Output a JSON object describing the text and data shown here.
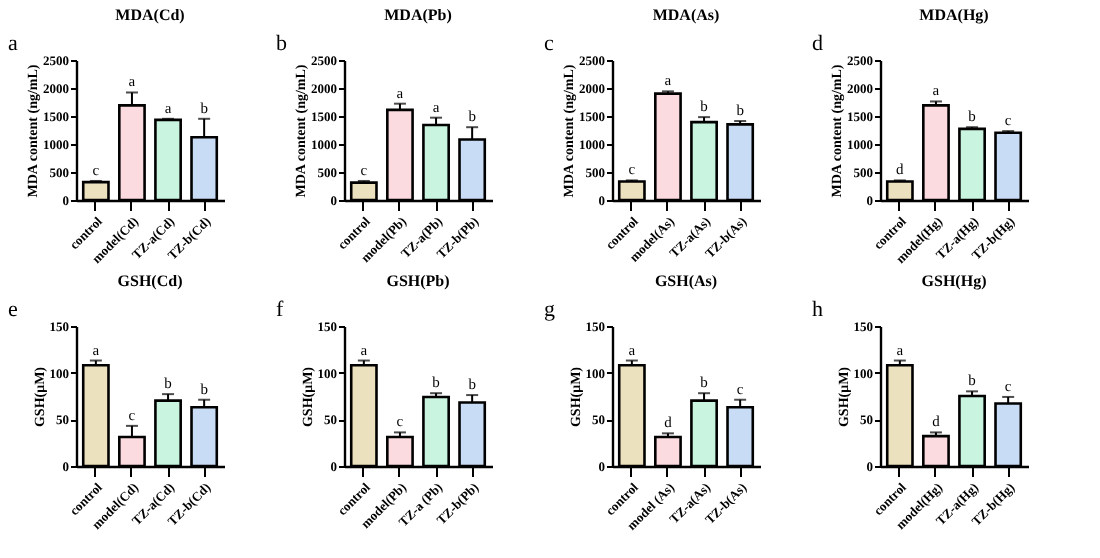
{
  "chart_data": [
    {
      "type": "bar",
      "title": "MDA(Cd)",
      "ylabel": "MDA content (ng/mL)",
      "categories": [
        "control",
        "model(Cd)",
        "TZ-a(Cd)",
        "TZ-b(Cd)"
      ],
      "colors": [
        "#ebe1bf",
        "#fcdbe0",
        "#c9f4df",
        "#c8dcf5"
      ],
      "values": [
        320,
        1690,
        1430,
        1120
      ],
      "errors": [
        20,
        230,
        20,
        330
      ],
      "ylim": [
        0,
        2500
      ],
      "yticks": [
        0,
        500,
        1000,
        1500,
        2000,
        2500
      ],
      "annotations": [
        "a",
        {
          "text": "c",
          "x": "control",
          "y": 340
        },
        {
          "text": "a",
          "x": "model(Cd)",
          "y": 1920
        },
        {
          "text": "a",
          "x": "TZ-a(Cd)",
          "y": 1450
        },
        {
          "text": "b",
          "x": "TZ-b(Cd)",
          "y": 1450
        }
      ]
    },
    {
      "type": "bar",
      "title": "MDA(Pb)",
      "ylabel": "MDA content (ng/mL)",
      "categories": [
        "control",
        "model(Pb)",
        "TZ-a(Pb)",
        "TZ-b(Pb)"
      ],
      "colors": [
        "#ebe1bf",
        "#fcdbe0",
        "#c9f4df",
        "#c8dcf5"
      ],
      "values": [
        310,
        1610,
        1340,
        1080
      ],
      "errors": [
        30,
        110,
        130,
        220
      ],
      "ylim": [
        0,
        2500
      ],
      "yticks": [
        0,
        500,
        1000,
        1500,
        2000,
        2500
      ],
      "annotations": [
        "b",
        {
          "text": "c",
          "x": "control",
          "y": 340
        },
        {
          "text": "a",
          "x": "model(Pb)",
          "y": 1720
        },
        {
          "text": "a",
          "x": "TZ-a(Pb)",
          "y": 1470
        },
        {
          "text": "b",
          "x": "TZ-b(Pb)",
          "y": 1300
        }
      ]
    },
    {
      "type": "bar",
      "title": "MDA(As)",
      "ylabel": "MDA content (ng/mL)",
      "categories": [
        "control",
        "model(As)",
        "TZ-a(As)",
        "TZ-b(As)"
      ],
      "colors": [
        "#ebe1bf",
        "#fcdbe0",
        "#c9f4df",
        "#c8dcf5"
      ],
      "values": [
        330,
        1900,
        1390,
        1350
      ],
      "errors": [
        20,
        40,
        90,
        60
      ],
      "ylim": [
        0,
        2500
      ],
      "yticks": [
        0,
        500,
        1000,
        1500,
        2000,
        2500
      ],
      "annotations": [
        "c",
        {
          "text": "c",
          "x": "control",
          "y": 350
        },
        {
          "text": "a",
          "x": "model(As)",
          "y": 1940
        },
        {
          "text": "b",
          "x": "TZ-a(As)",
          "y": 1480
        },
        {
          "text": "b",
          "x": "TZ-b(As)",
          "y": 1410
        }
      ]
    },
    {
      "type": "bar",
      "title": "MDA(Hg)",
      "ylabel": "MDA content (ng/mL)",
      "categories": [
        "control",
        "model(Hg)",
        "TZ-a(Hg)",
        "TZ-b(Hg)"
      ],
      "colors": [
        "#ebe1bf",
        "#fcdbe0",
        "#c9f4df",
        "#c8dcf5"
      ],
      "values": [
        330,
        1690,
        1270,
        1200
      ],
      "errors": [
        20,
        70,
        30,
        30
      ],
      "ylim": [
        0,
        2500
      ],
      "yticks": [
        0,
        500,
        1000,
        1500,
        2000,
        2500
      ],
      "annotations": [
        "d",
        {
          "text": "d",
          "x": "control",
          "y": 350
        },
        {
          "text": "a",
          "x": "model(Hg)",
          "y": 1760
        },
        {
          "text": "b",
          "x": "TZ-a(Hg)",
          "y": 1300
        },
        {
          "text": "c",
          "x": "TZ-b(Hg)",
          "y": 1230
        }
      ]
    },
    {
      "type": "bar",
      "title": "GSH(Cd)",
      "ylabel": "GSH(μM)",
      "categories": [
        "control",
        "model(Cd)",
        "TZ-a(Cd)",
        "TZ-b(Cd)"
      ],
      "colors": [
        "#ebe1bf",
        "#fcdbe0",
        "#c9f4df",
        "#c8dcf5"
      ],
      "values": [
        108,
        31,
        70,
        63
      ],
      "errors": [
        5,
        12,
        7,
        8
      ],
      "ylim": [
        0,
        150
      ],
      "yticks": [
        0,
        50,
        100,
        150
      ],
      "annotations": [
        "e",
        {
          "text": "a",
          "x": "control",
          "y": 113
        },
        {
          "text": "c",
          "x": "model(Cd)",
          "y": 43
        },
        {
          "text": "b",
          "x": "TZ-a(Cd)",
          "y": 77
        },
        {
          "text": "b",
          "x": "TZ-b(Cd)",
          "y": 71
        }
      ]
    },
    {
      "type": "bar",
      "title": "GSH(Pb)",
      "ylabel": "GSH(μM)",
      "categories": [
        "control",
        "model(Pb)",
        "TZ-a (Pb)",
        "TZ-b(Pb)"
      ],
      "colors": [
        "#ebe1bf",
        "#fcdbe0",
        "#c9f4df",
        "#c8dcf5"
      ],
      "values": [
        108,
        31,
        74,
        68
      ],
      "errors": [
        5,
        5,
        4,
        8
      ],
      "ylim": [
        0,
        150
      ],
      "yticks": [
        0,
        50,
        100,
        150
      ],
      "annotations": [
        "f",
        {
          "text": "a",
          "x": "control",
          "y": 113
        },
        {
          "text": "c",
          "x": "model(Pb)",
          "y": 36
        },
        {
          "text": "b",
          "x": "TZ-a (Pb)",
          "y": 78
        },
        {
          "text": "b",
          "x": "TZ-b(Pb)",
          "y": 76
        }
      ]
    },
    {
      "type": "bar",
      "title": "GSH(As)",
      "ylabel": "GSH(μM)",
      "categories": [
        "control",
        "model (As)",
        "TZ-a(As)",
        "TZ-b(As)"
      ],
      "colors": [
        "#ebe1bf",
        "#fcdbe0",
        "#c9f4df",
        "#c8dcf5"
      ],
      "values": [
        108,
        31,
        70,
        63
      ],
      "errors": [
        5,
        4,
        8,
        8
      ],
      "ylim": [
        0,
        150
      ],
      "yticks": [
        0,
        50,
        100,
        150
      ],
      "annotations": [
        "g",
        {
          "text": "a",
          "x": "control",
          "y": 113
        },
        {
          "text": "d",
          "x": "model (As)",
          "y": 35
        },
        {
          "text": "b",
          "x": "TZ-a(As)",
          "y": 78
        },
        {
          "text": "c",
          "x": "TZ-b(As)",
          "y": 71
        }
      ]
    },
    {
      "type": "bar",
      "title": "GSH(Hg)",
      "ylabel": "GSH(μM)",
      "categories": [
        "control",
        "model(Hg)",
        "TZ-a(Hg)",
        "TZ-b(Hg)"
      ],
      "colors": [
        "#ebe1bf",
        "#fcdbe0",
        "#c9f4df",
        "#c8dcf5"
      ],
      "values": [
        108,
        32,
        75,
        67
      ],
      "errors": [
        5,
        4,
        5,
        7
      ],
      "ylim": [
        0,
        150
      ],
      "yticks": [
        0,
        50,
        100,
        150
      ],
      "annotations": [
        "h",
        {
          "text": "a",
          "x": "control",
          "y": 113
        },
        {
          "text": "d",
          "x": "model(Hg)",
          "y": 36
        },
        {
          "text": "b",
          "x": "TZ-a(Hg)",
          "y": 80
        },
        {
          "text": "c",
          "x": "TZ-b(Hg)",
          "y": 74
        }
      ]
    }
  ]
}
